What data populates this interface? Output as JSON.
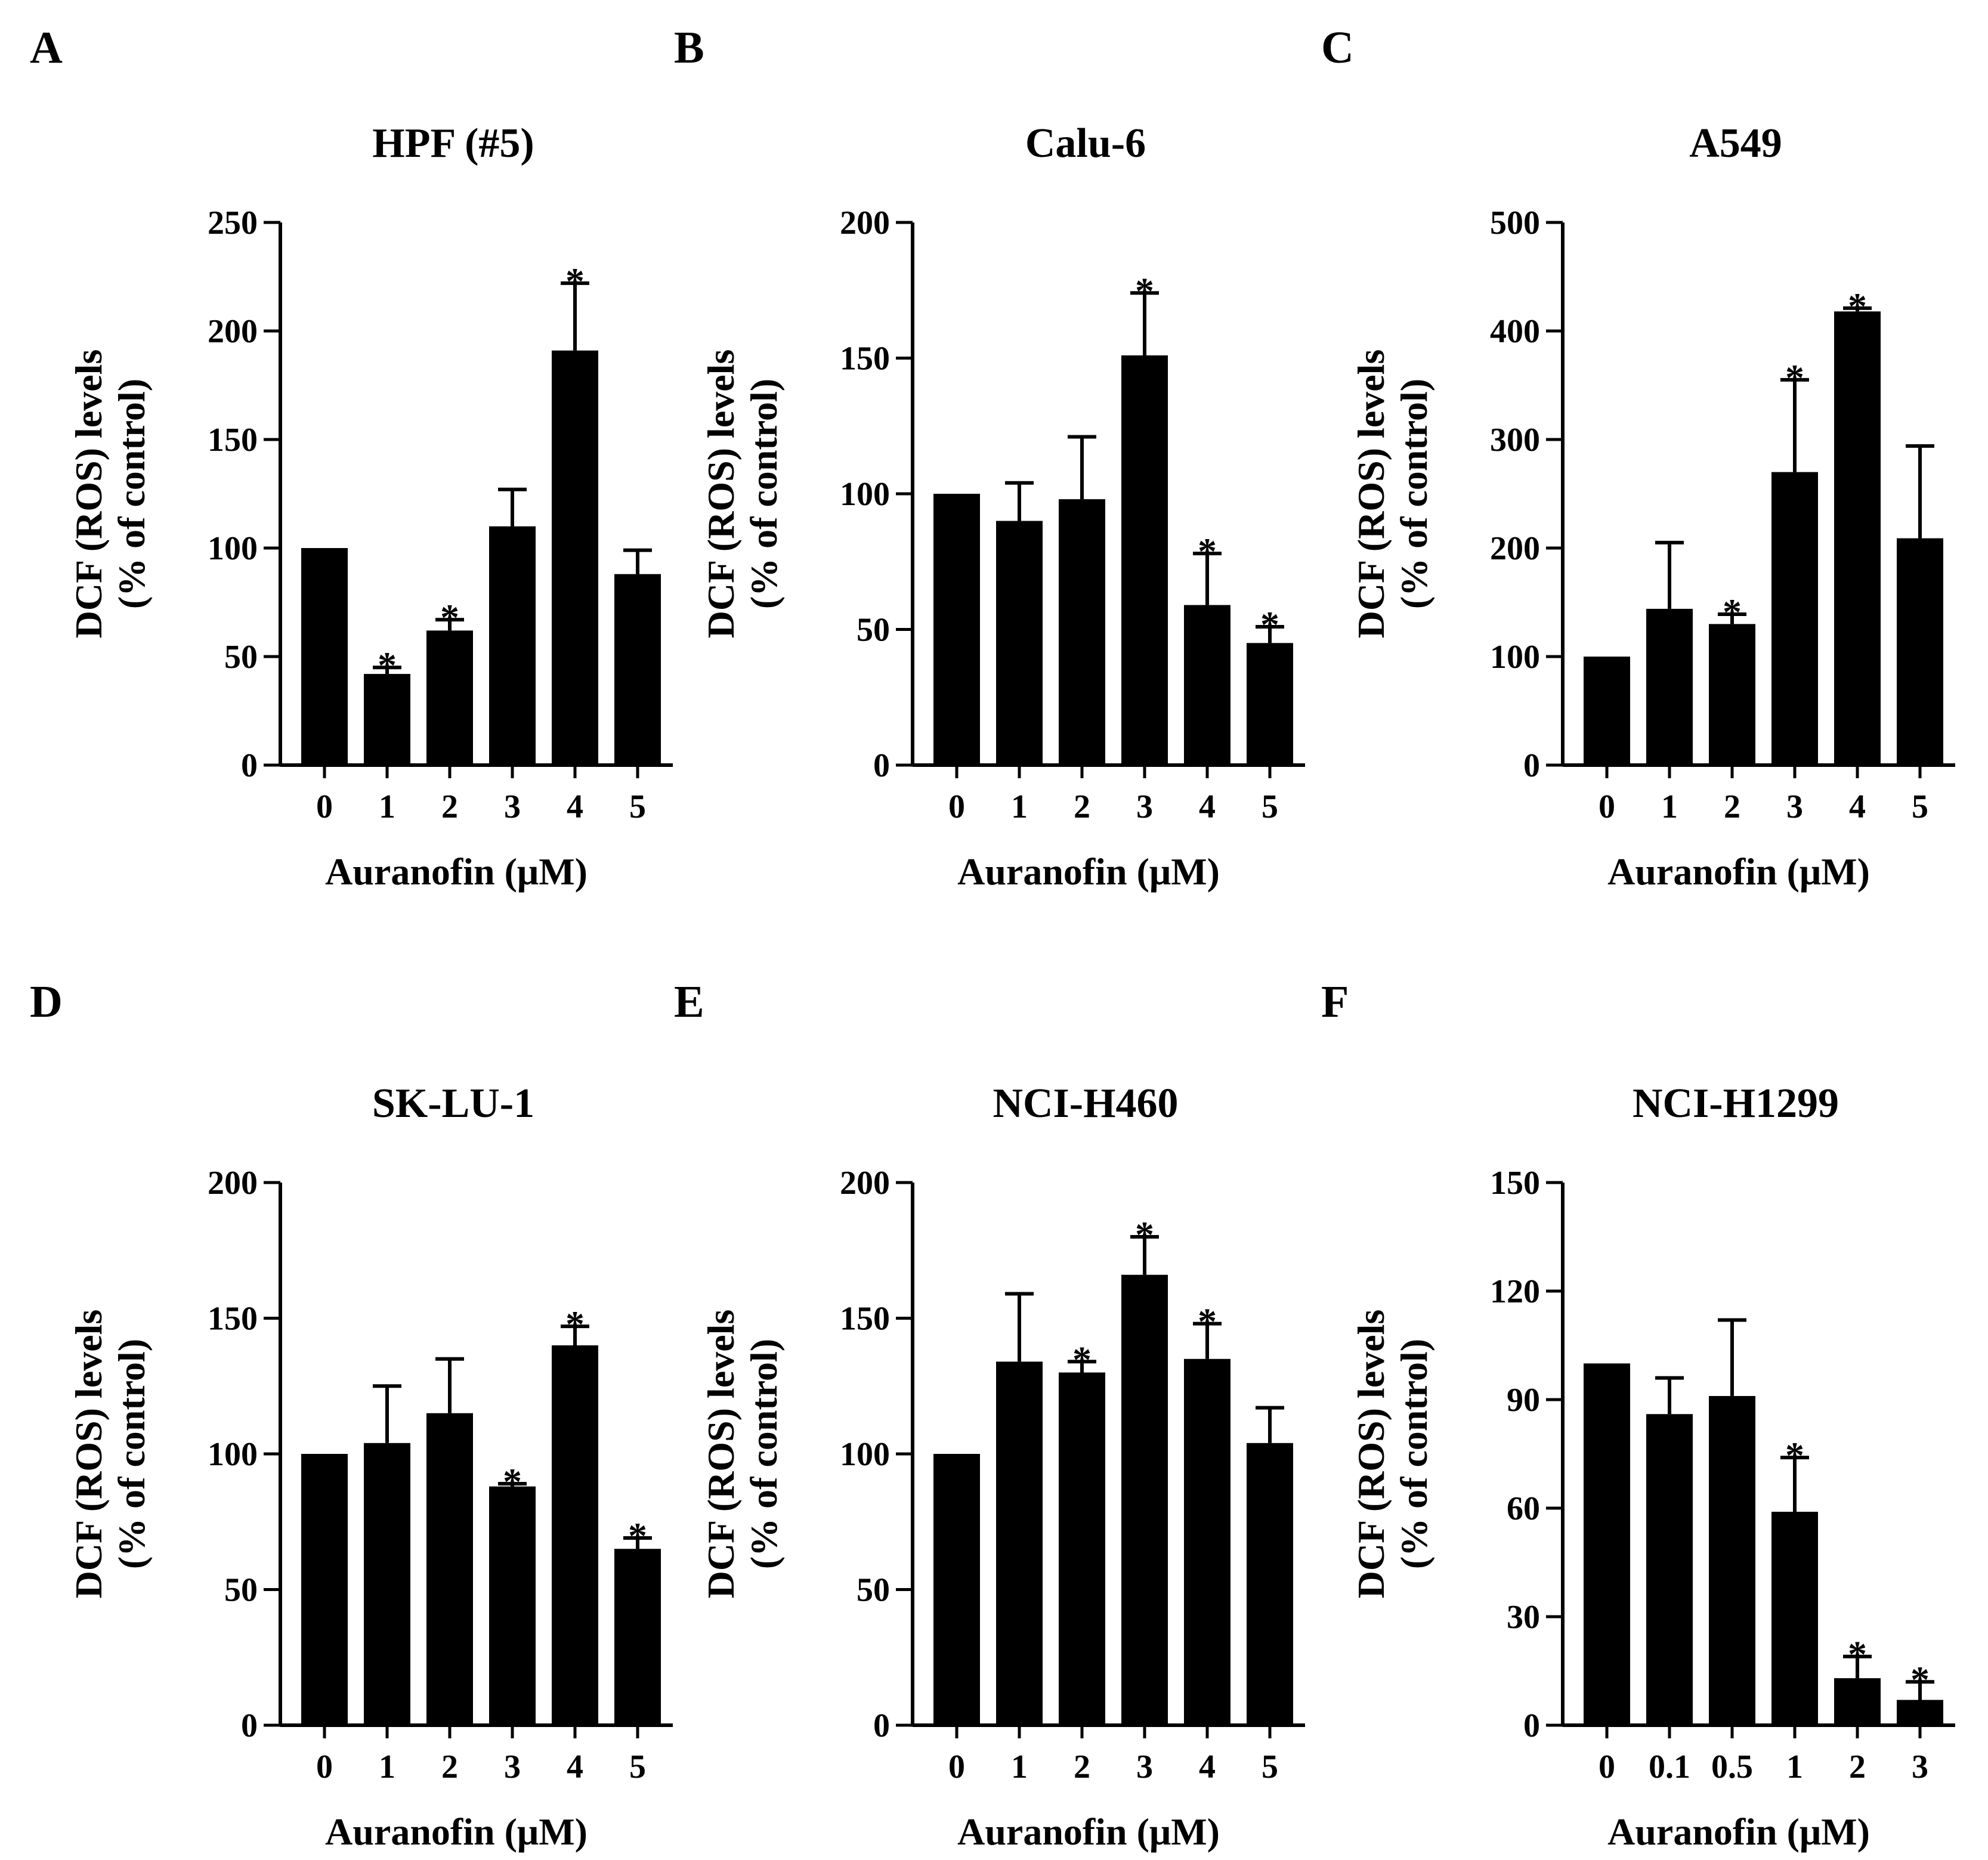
{
  "figure": {
    "panels": [
      "A",
      "B",
      "C",
      "D",
      "E",
      "F"
    ]
  },
  "chart_data": [
    {
      "panel": "A",
      "type": "bar",
      "title": "HPF (#5)",
      "xlabel": "Auranofin (μM)",
      "ylabel": [
        "DCF (ROS) levels",
        "(% of control)"
      ],
      "ylim": [
        0,
        250
      ],
      "yticks": [
        "0",
        "50",
        "100",
        "150",
        "200",
        "250"
      ],
      "categories": [
        "0",
        "1",
        "2",
        "3",
        "4",
        "5"
      ],
      "values": [
        100,
        42,
        62,
        110,
        191,
        88
      ],
      "errors": [
        0,
        3,
        5,
        17,
        31,
        11
      ],
      "significant": [
        false,
        true,
        true,
        false,
        true,
        false
      ],
      "marker": "*"
    },
    {
      "panel": "B",
      "type": "bar",
      "title": "Calu-6",
      "xlabel": "Auranofin (μM)",
      "ylabel": [
        "DCF (ROS) levels",
        "(% of control)"
      ],
      "ylim": [
        0,
        200
      ],
      "yticks": [
        "0",
        "50",
        "100",
        "150",
        "200"
      ],
      "categories": [
        "0",
        "1",
        "2",
        "3",
        "4",
        "5"
      ],
      "values": [
        100,
        90,
        98,
        151,
        59,
        45
      ],
      "errors": [
        0,
        14,
        23,
        23,
        19,
        6
      ],
      "significant": [
        false,
        false,
        false,
        true,
        true,
        true
      ],
      "marker": "*"
    },
    {
      "panel": "C",
      "type": "bar",
      "title": "A549",
      "xlabel": "Auranofin (μM)",
      "ylabel": [
        "DCF (ROS) levels",
        "(% of control)"
      ],
      "ylim": [
        0,
        500
      ],
      "yticks": [
        "0",
        "100",
        "200",
        "300",
        "400",
        "500"
      ],
      "categories": [
        "0",
        "1",
        "2",
        "3",
        "4",
        "5"
      ],
      "values": [
        100,
        144,
        130,
        270,
        418,
        209
      ],
      "errors": [
        0,
        61,
        9,
        85,
        3,
        85
      ],
      "significant": [
        false,
        false,
        true,
        true,
        true,
        false
      ],
      "marker": "*"
    },
    {
      "panel": "D",
      "type": "bar",
      "title": "SK-LU-1",
      "xlabel": "Auranofin (μM)",
      "ylabel": [
        "DCF (ROS) levels",
        "(% of control)"
      ],
      "ylim": [
        0,
        200
      ],
      "yticks": [
        "0",
        "50",
        "100",
        "150",
        "200"
      ],
      "categories": [
        "0",
        "1",
        "2",
        "3",
        "4",
        "5"
      ],
      "values": [
        100,
        104,
        115,
        88,
        140,
        65
      ],
      "errors": [
        0,
        21,
        20,
        1,
        7,
        4
      ],
      "significant": [
        false,
        false,
        false,
        true,
        true,
        true
      ],
      "marker": "*"
    },
    {
      "panel": "E",
      "type": "bar",
      "title": "NCI-H460",
      "xlabel": "Auranofin (μM)",
      "ylabel": [
        "DCF (ROS) levels",
        "(% of control)"
      ],
      "ylim": [
        0,
        200
      ],
      "yticks": [
        "0",
        "50",
        "100",
        "150",
        "200"
      ],
      "categories": [
        "0",
        "1",
        "2",
        "3",
        "4",
        "5"
      ],
      "values": [
        100,
        134,
        130,
        166,
        135,
        104
      ],
      "errors": [
        0,
        25,
        4,
        14,
        13,
        13
      ],
      "significant": [
        false,
        false,
        true,
        true,
        true,
        false
      ],
      "marker": "*"
    },
    {
      "panel": "F",
      "type": "bar",
      "title": "NCI-H1299",
      "xlabel": "Auranofin (μM)",
      "ylabel": [
        "DCF (ROS) levels",
        "(% of control)"
      ],
      "ylim": [
        0,
        150
      ],
      "yticks": [
        "0",
        "30",
        "60",
        "90",
        "120",
        "150"
      ],
      "categories": [
        "0",
        "0.1",
        "0.5",
        "1",
        "2",
        "3"
      ],
      "values": [
        100,
        86,
        91,
        59,
        13,
        7
      ],
      "errors": [
        0,
        10,
        21,
        15,
        6,
        5
      ],
      "significant": [
        false,
        false,
        false,
        true,
        true,
        true
      ],
      "marker": "*"
    }
  ]
}
